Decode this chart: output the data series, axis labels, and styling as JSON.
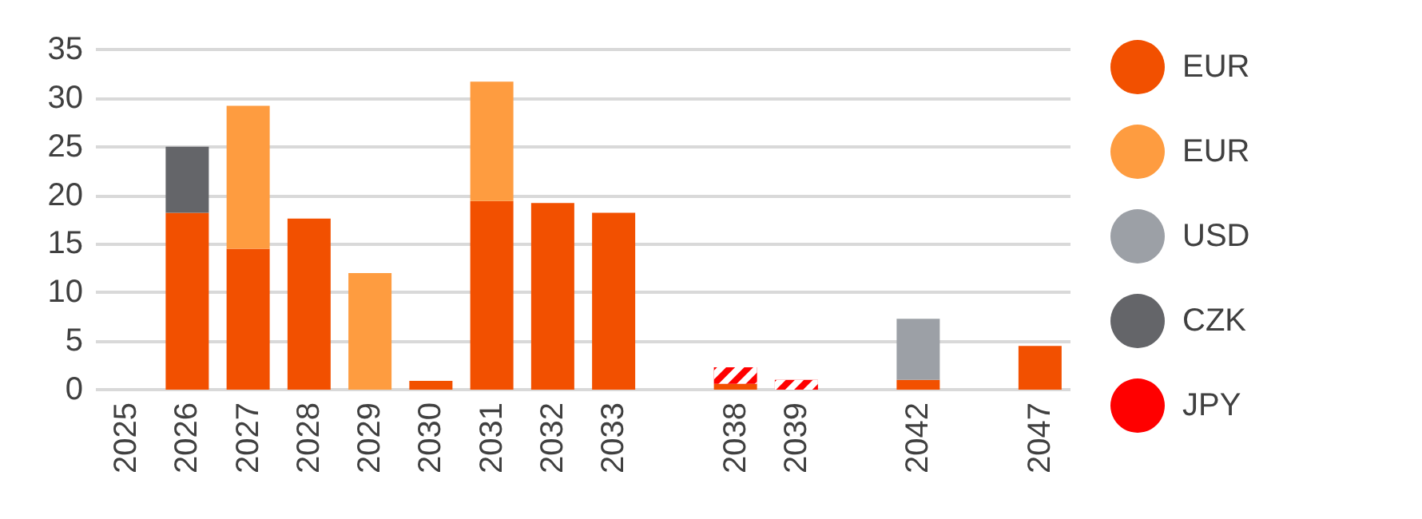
{
  "chart_data": {
    "type": "bar",
    "stacked": true,
    "categories": [
      "2025",
      "2026",
      "2027",
      "2028",
      "2029",
      "2030",
      "2031",
      "2032",
      "2033",
      null,
      "2038",
      "2039",
      null,
      "2042",
      null,
      "2047"
    ],
    "series": [
      {
        "name": "EUR",
        "color": "#f25000",
        "values": [
          0,
          18.2,
          14.5,
          17.6,
          0,
          0.9,
          19.4,
          19.2,
          18.2,
          null,
          0.6,
          0,
          null,
          1.0,
          null,
          4.5
        ]
      },
      {
        "name": "EUR",
        "color": "#fe9c40",
        "values": [
          0,
          0,
          14.7,
          0,
          12.0,
          0,
          12.3,
          0,
          0,
          null,
          0,
          0,
          null,
          0,
          null,
          0
        ]
      },
      {
        "name": "USD",
        "color": "#9ca0a6",
        "values": [
          0,
          0,
          0,
          0,
          0,
          0,
          0,
          0,
          0,
          null,
          0,
          0,
          null,
          6.3,
          null,
          0
        ]
      },
      {
        "name": "CZK",
        "color": "#646569",
        "values": [
          0,
          6.8,
          0,
          0,
          0,
          0,
          0,
          0,
          0,
          null,
          0,
          0,
          null,
          0,
          null,
          0
        ]
      },
      {
        "name": "JPY",
        "color": "#ff0000",
        "values": [
          0,
          0,
          0,
          0,
          0,
          0,
          0,
          0,
          0,
          null,
          1.7,
          1.0,
          null,
          0,
          null,
          0
        ]
      }
    ],
    "ylim": [
      0,
      35
    ],
    "yticks": [
      0,
      5,
      10,
      15,
      20,
      25,
      30,
      35
    ],
    "grid": "y",
    "legend": "right"
  }
}
